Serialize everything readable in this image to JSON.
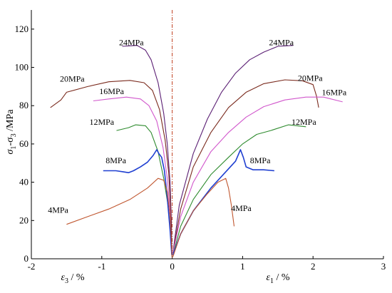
{
  "chart_data": {
    "type": "line",
    "title": "",
    "xlabel_left_base": "ε",
    "xlabel_left_sub": "3",
    "xlabel_left_unit": " / %",
    "xlabel_right_base": "ε",
    "xlabel_right_sub": "1",
    "xlabel_right_unit": " / %",
    "ylabel_parts": [
      "σ",
      "1",
      "-σ",
      "3",
      " /MPa"
    ],
    "xlim": [
      -2,
      3
    ],
    "ylim": [
      0,
      130
    ],
    "xticks": [
      -2,
      -1,
      0,
      1,
      2,
      3
    ],
    "xtick_labels": [
      "-2",
      "-1",
      "0",
      "1",
      "2",
      "3"
    ],
    "yticks": [
      0,
      20,
      40,
      60,
      80,
      100,
      120
    ],
    "ytick_labels": [
      "0",
      "20",
      "40",
      "60",
      "80",
      "100",
      "120"
    ],
    "grid": false,
    "reference_line_x": 0,
    "series": [
      {
        "name": "24MPa",
        "color": "#5b1f74",
        "label_left": {
          "text": "24MPa",
          "x": -0.58,
          "y": 111.5
        },
        "label_right": {
          "text": "24MPa",
          "x": 1.55,
          "y": 111.5
        },
        "left": [
          [
            -0.71,
            111
          ],
          [
            -0.5,
            111.5
          ],
          [
            -0.38,
            109
          ],
          [
            -0.3,
            104
          ],
          [
            -0.2,
            92
          ],
          [
            -0.12,
            76
          ],
          [
            -0.07,
            60
          ],
          [
            -0.03,
            40
          ],
          [
            -0.012,
            20
          ],
          [
            -0.004,
            3
          ]
        ],
        "right": [
          [
            0.01,
            3
          ],
          [
            0.1,
            28
          ],
          [
            0.3,
            55
          ],
          [
            0.5,
            73
          ],
          [
            0.7,
            87
          ],
          [
            0.9,
            97
          ],
          [
            1.1,
            104
          ],
          [
            1.3,
            108
          ],
          [
            1.5,
            111
          ],
          [
            1.72,
            111.5
          ]
        ]
      },
      {
        "name": "20MPa",
        "color": "#7a2a1d",
        "label_left": {
          "text": "20MPa",
          "x": -1.42,
          "y": 92.5
        },
        "label_right": {
          "text": "20MPa",
          "x": 1.96,
          "y": 93
        },
        "left": [
          [
            -1.73,
            79
          ],
          [
            -1.58,
            83
          ],
          [
            -1.5,
            87
          ],
          [
            -1.2,
            90
          ],
          [
            -0.9,
            92.5
          ],
          [
            -0.6,
            93.2
          ],
          [
            -0.4,
            92
          ],
          [
            -0.28,
            88
          ],
          [
            -0.18,
            78
          ],
          [
            -0.1,
            62
          ],
          [
            -0.05,
            45
          ],
          [
            -0.02,
            25
          ],
          [
            -0.006,
            3
          ]
        ],
        "right": [
          [
            0.01,
            3
          ],
          [
            0.12,
            26
          ],
          [
            0.3,
            48
          ],
          [
            0.55,
            66
          ],
          [
            0.8,
            79
          ],
          [
            1.05,
            87
          ],
          [
            1.3,
            91.5
          ],
          [
            1.6,
            93.5
          ],
          [
            1.85,
            93
          ],
          [
            2.0,
            91
          ],
          [
            2.05,
            85
          ],
          [
            2.08,
            79
          ]
        ]
      },
      {
        "name": "16MPa",
        "color": "#d157cc",
        "label_left": {
          "text": "16MPa",
          "x": -0.86,
          "y": 86
        },
        "label_right": {
          "text": "16MPa",
          "x": 2.3,
          "y": 85.5
        },
        "left": [
          [
            -1.12,
            82.5
          ],
          [
            -0.9,
            83.5
          ],
          [
            -0.65,
            84.5
          ],
          [
            -0.45,
            83.5
          ],
          [
            -0.33,
            80
          ],
          [
            -0.22,
            72
          ],
          [
            -0.13,
            58
          ],
          [
            -0.07,
            42
          ],
          [
            -0.03,
            25
          ],
          [
            -0.007,
            3
          ]
        ],
        "right": [
          [
            0.01,
            3
          ],
          [
            0.12,
            22
          ],
          [
            0.3,
            40
          ],
          [
            0.55,
            56
          ],
          [
            0.8,
            66
          ],
          [
            1.05,
            74
          ],
          [
            1.3,
            79.5
          ],
          [
            1.6,
            83
          ],
          [
            1.9,
            84.5
          ],
          [
            2.15,
            84.5
          ],
          [
            2.42,
            82
          ]
        ]
      },
      {
        "name": "12MPa",
        "color": "#2e8b2e",
        "label_left": {
          "text": "12MPa",
          "x": -1.0,
          "y": 70
        },
        "label_right": {
          "text": "12MPa",
          "x": 1.87,
          "y": 70
        },
        "left": [
          [
            -0.79,
            67
          ],
          [
            -0.62,
            68.5
          ],
          [
            -0.52,
            70
          ],
          [
            -0.38,
            69.5
          ],
          [
            -0.3,
            66
          ],
          [
            -0.2,
            56
          ],
          [
            -0.12,
            42
          ],
          [
            -0.06,
            28
          ],
          [
            -0.02,
            12
          ],
          [
            -0.005,
            2
          ]
        ],
        "right": [
          [
            0.01,
            2
          ],
          [
            0.12,
            17
          ],
          [
            0.3,
            31
          ],
          [
            0.55,
            44
          ],
          [
            0.8,
            53
          ],
          [
            1.0,
            60
          ],
          [
            1.2,
            65
          ],
          [
            1.4,
            67
          ],
          [
            1.65,
            70
          ],
          [
            1.9,
            69
          ]
        ]
      },
      {
        "name": "8MPa",
        "color": "#1f3fd1",
        "label_left": {
          "text": "8MPa",
          "x": -0.8,
          "y": 50
        },
        "label_right": {
          "text": "8MPa",
          "x": 1.25,
          "y": 50
        },
        "left": [
          [
            -0.98,
            46
          ],
          [
            -0.8,
            46
          ],
          [
            -0.7,
            45.5
          ],
          [
            -0.62,
            45
          ],
          [
            -0.55,
            46
          ],
          [
            -0.45,
            48
          ],
          [
            -0.35,
            50.5
          ],
          [
            -0.27,
            54
          ],
          [
            -0.22,
            57
          ],
          [
            -0.19,
            55
          ],
          [
            -0.15,
            53
          ],
          [
            -0.11,
            46
          ],
          [
            -0.07,
            32
          ],
          [
            -0.03,
            15
          ],
          [
            -0.006,
            2
          ]
        ],
        "right": [
          [
            0.01,
            2
          ],
          [
            0.12,
            13
          ],
          [
            0.3,
            25
          ],
          [
            0.55,
            37
          ],
          [
            0.75,
            45
          ],
          [
            0.9,
            51
          ],
          [
            0.97,
            57
          ],
          [
            1.01,
            53
          ],
          [
            1.05,
            48
          ],
          [
            1.15,
            46.5
          ],
          [
            1.3,
            46.5
          ],
          [
            1.45,
            46
          ]
        ]
      },
      {
        "name": "4MPa",
        "color": "#c0562f",
        "label_left": {
          "text": "4MPa",
          "x": -1.62,
          "y": 24
        },
        "label_right": {
          "text": "4MPa",
          "x": 0.98,
          "y": 25
        },
        "left": [
          [
            -1.5,
            18
          ],
          [
            -1.2,
            22
          ],
          [
            -0.9,
            26
          ],
          [
            -0.6,
            31
          ],
          [
            -0.35,
            37
          ],
          [
            -0.2,
            42
          ],
          [
            -0.12,
            41
          ],
          [
            -0.07,
            35
          ],
          [
            -0.03,
            22
          ],
          [
            -0.01,
            8
          ],
          [
            -0.003,
            1
          ]
        ],
        "right": [
          [
            0.01,
            1
          ],
          [
            0.12,
            13
          ],
          [
            0.3,
            25
          ],
          [
            0.5,
            34
          ],
          [
            0.65,
            40
          ],
          [
            0.76,
            42
          ],
          [
            0.8,
            37
          ],
          [
            0.84,
            28
          ],
          [
            0.88,
            17
          ]
        ]
      }
    ]
  }
}
